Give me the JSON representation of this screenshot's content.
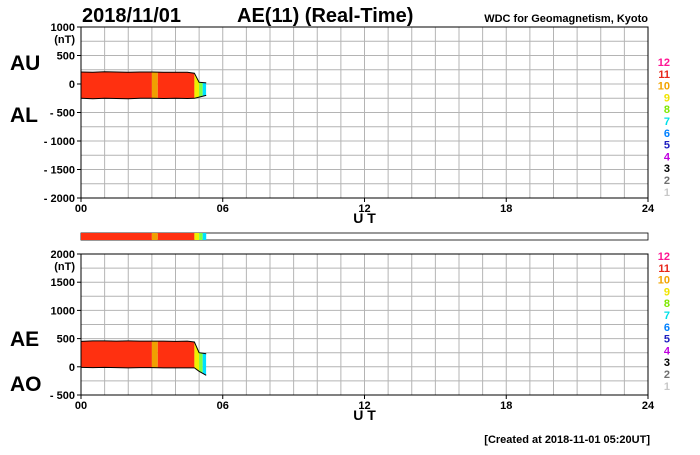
{
  "header": {
    "date": "2018/11/01",
    "title": "AE(11) (Real-Time)",
    "source": "WDC for Geomagnetism, Kyoto"
  },
  "footer": {
    "created": "[Created at 2018-11-01 05:20UT]"
  },
  "legend": {
    "items": [
      {
        "label": "12",
        "color": "#ff1493"
      },
      {
        "label": "11",
        "color": "#e8271a"
      },
      {
        "label": "10",
        "color": "#f2a400"
      },
      {
        "label": "9",
        "color": "#f0e400"
      },
      {
        "label": "8",
        "color": "#7ee800"
      },
      {
        "label": "7",
        "color": "#00e0e8"
      },
      {
        "label": "6",
        "color": "#0080ff"
      },
      {
        "label": "5",
        "color": "#2020c0"
      },
      {
        "label": "4",
        "color": "#c000e0"
      },
      {
        "label": "3",
        "color": "#000000"
      },
      {
        "label": "2",
        "color": "#707070"
      },
      {
        "label": "1",
        "color": "#c8c8c8"
      }
    ]
  },
  "colors": {
    "fill_main": "#ff3010",
    "fill_stripe": "#f0a000",
    "fill_cyan": "#00e0ff",
    "fill_green": "#80ff40",
    "fill_yellow": "#f0f000",
    "grid": "#b4b4b4"
  },
  "chart_data": [
    {
      "type": "area",
      "title": "",
      "series_labels": [
        "AU",
        "AL"
      ],
      "xlabel": "U T",
      "ylabel": "(nT)",
      "xlim": [
        0,
        24
      ],
      "ylim": [
        -2000,
        1000
      ],
      "xticks": [
        "00",
        "06",
        "12",
        "18",
        "24"
      ],
      "yticks": [
        {
          "value": 1000,
          "label": "1000"
        },
        {
          "value": 500,
          "label": "500"
        },
        {
          "value": 0,
          "label": "0"
        },
        {
          "value": -500,
          "label": "- 500"
        },
        {
          "value": -1000,
          "label": "- 1000"
        },
        {
          "value": -1500,
          "label": "- 1500"
        },
        {
          "value": -2000,
          "label": "- 2000"
        }
      ],
      "grid": true,
      "series": [
        {
          "name": "AU",
          "x": [
            0,
            0.5,
            1,
            1.5,
            2,
            2.5,
            3,
            3.5,
            4,
            4.5,
            4.8,
            5.0,
            5.3
          ],
          "values": [
            210,
            205,
            215,
            210,
            205,
            210,
            210,
            205,
            205,
            205,
            190,
            30,
            20
          ]
        },
        {
          "name": "AL",
          "x": [
            0,
            0.5,
            1,
            1.5,
            2,
            2.5,
            3,
            3.5,
            4,
            4.5,
            4.8,
            5.0,
            5.3
          ],
          "values": [
            -250,
            -260,
            -250,
            -255,
            -260,
            -250,
            -250,
            -255,
            -250,
            -255,
            -250,
            -230,
            -200
          ]
        }
      ]
    },
    {
      "type": "area",
      "title": "",
      "series_labels": [
        "AE",
        "AO"
      ],
      "xlabel": "U T",
      "ylabel": "(nT)",
      "xlim": [
        0,
        24
      ],
      "ylim": [
        -500,
        2000
      ],
      "xticks": [
        "00",
        "06",
        "12",
        "18",
        "24"
      ],
      "yticks": [
        {
          "value": 2000,
          "label": "2000"
        },
        {
          "value": 1500,
          "label": "1500"
        },
        {
          "value": 1000,
          "label": "1000"
        },
        {
          "value": 500,
          "label": "500"
        },
        {
          "value": 0,
          "label": "0"
        },
        {
          "value": -500,
          "label": "- 500"
        }
      ],
      "grid": true,
      "series": [
        {
          "name": "AE",
          "x": [
            0,
            0.5,
            1,
            1.5,
            2,
            2.5,
            3,
            3.5,
            4,
            4.5,
            4.8,
            5.0,
            5.3
          ],
          "values": [
            450,
            460,
            460,
            455,
            460,
            455,
            455,
            455,
            450,
            455,
            440,
            250,
            230
          ]
        },
        {
          "name": "AO",
          "x": [
            0,
            0.5,
            1,
            1.5,
            2,
            2.5,
            3,
            3.5,
            4,
            4.5,
            4.8,
            5.0,
            5.3
          ],
          "values": [
            -10,
            -15,
            -10,
            -15,
            -20,
            -15,
            -15,
            -20,
            -20,
            -20,
            -20,
            -80,
            -150
          ]
        }
      ]
    }
  ],
  "station_bar": {
    "segments": [
      {
        "from": 0,
        "to": 3.0,
        "color": "#ff3010"
      },
      {
        "from": 3.0,
        "to": 3.25,
        "color": "#f0a000"
      },
      {
        "from": 3.25,
        "to": 4.8,
        "color": "#ff3010"
      },
      {
        "from": 4.8,
        "to": 5.0,
        "color": "#f0f000"
      },
      {
        "from": 5.0,
        "to": 5.15,
        "color": "#80ff40"
      },
      {
        "from": 5.15,
        "to": 5.3,
        "color": "#00e0ff"
      }
    ]
  }
}
